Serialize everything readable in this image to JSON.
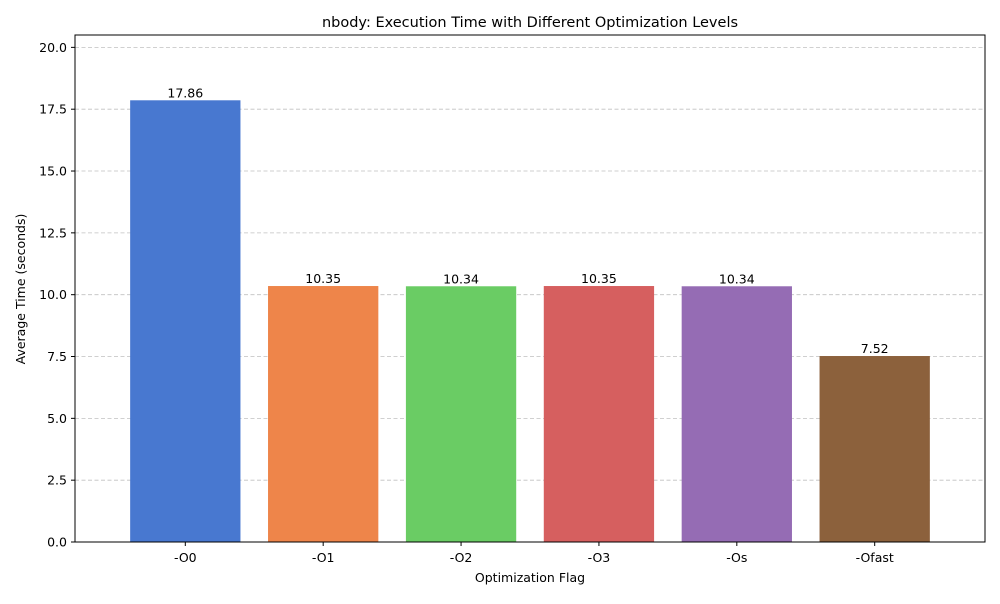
{
  "chart_data": {
    "type": "bar",
    "title": "nbody: Execution Time with Different Optimization Levels",
    "xlabel": "Optimization Flag",
    "ylabel": "Average Time (seconds)",
    "categories": [
      "-O0",
      "-O1",
      "-O2",
      "-O3",
      "-Os",
      "-Ofast"
    ],
    "values": [
      17.86,
      10.35,
      10.34,
      10.35,
      10.34,
      7.52
    ],
    "data_labels": [
      "17.86",
      "10.35",
      "10.34",
      "10.35",
      "10.34",
      "7.52"
    ],
    "colors": [
      "#4878d0",
      "#ee854a",
      "#6acc64",
      "#d65f5f",
      "#956cb4",
      "#8c613c"
    ],
    "ylim": [
      0,
      20.5
    ],
    "yticks": [
      0,
      2.5,
      5,
      7.5,
      10,
      12.5,
      15,
      17.5,
      20
    ],
    "ytick_labels": [
      "0.0",
      "2.5",
      "5.0",
      "7.5",
      "10.0",
      "12.5",
      "15.0",
      "17.5",
      "20.0"
    ],
    "grid": "y-dashed",
    "grid_color": "#c0c0c0"
  }
}
